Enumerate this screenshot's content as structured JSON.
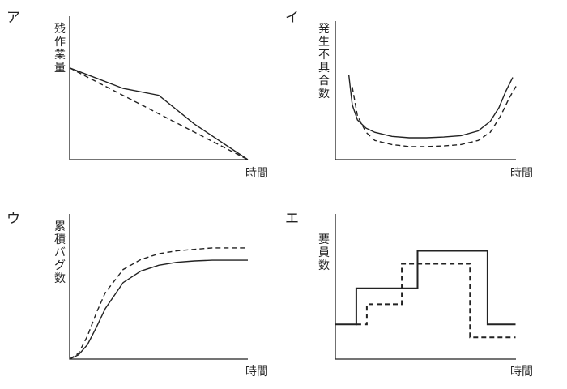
{
  "chart_data": [
    {
      "type": "line",
      "panel": "ア",
      "ylabel": "残作業量",
      "xlabel": "時間",
      "xlim": [
        0,
        10
      ],
      "ylim": [
        0,
        10
      ],
      "series": [
        {
          "style": "solid",
          "x": [
            0,
            3,
            5,
            7,
            10
          ],
          "y": [
            6.7,
            5.2,
            4.7,
            2.6,
            0
          ]
        },
        {
          "style": "dashed",
          "x": [
            0,
            10
          ],
          "y": [
            6.7,
            0
          ]
        }
      ]
    },
    {
      "type": "line",
      "panel": "イ",
      "ylabel": "発生不具合数",
      "xlabel": "時間",
      "xlim": [
        0,
        10
      ],
      "ylim": [
        0,
        10
      ],
      "series": [
        {
          "style": "solid",
          "x": [
            0.5,
            0.7,
            1,
            1.5,
            2,
            3,
            4,
            5,
            6,
            7,
            8,
            8.7,
            9.2,
            9.6,
            10
          ],
          "y": [
            6.2,
            4,
            2.9,
            2.3,
            2.0,
            1.7,
            1.6,
            1.6,
            1.65,
            1.75,
            2.1,
            2.8,
            3.8,
            5.0,
            6.0
          ]
        },
        {
          "style": "dashed",
          "x": [
            0.7,
            1,
            1.5,
            2,
            3,
            4,
            5,
            6,
            7,
            8,
            8.7,
            9.3,
            9.8,
            10.3
          ],
          "y": [
            5.3,
            3.2,
            2.0,
            1.4,
            1.1,
            0.95,
            0.95,
            1.0,
            1.1,
            1.4,
            2.0,
            3.2,
            4.5,
            5.6
          ]
        }
      ]
    },
    {
      "type": "line",
      "panel": "ウ",
      "ylabel": "累積バグ数",
      "xlabel": "時間",
      "xlim": [
        0,
        10
      ],
      "ylim": [
        0,
        10
      ],
      "series": [
        {
          "style": "solid",
          "x": [
            0,
            0.5,
            1,
            1.5,
            2,
            3,
            4,
            5,
            6,
            7,
            8,
            9,
            10
          ],
          "y": [
            0,
            0.3,
            1.0,
            2.2,
            3.5,
            5.3,
            6.1,
            6.5,
            6.7,
            6.8,
            6.85,
            6.85,
            6.85
          ]
        },
        {
          "style": "dashed",
          "x": [
            0,
            0.5,
            1,
            1.5,
            2,
            3,
            4,
            5,
            6,
            7,
            8,
            9,
            10
          ],
          "y": [
            0,
            0.4,
            1.6,
            3.2,
            4.6,
            6.2,
            6.9,
            7.3,
            7.5,
            7.6,
            7.7,
            7.7,
            7.7
          ]
        }
      ]
    },
    {
      "type": "line",
      "panel": "エ",
      "ylabel": "要員数",
      "xlabel": "時間",
      "xlim": [
        0,
        10
      ],
      "ylim": [
        0,
        10
      ],
      "series": [
        {
          "style": "solid",
          "step": true,
          "x": [
            0,
            1.2,
            1.2,
            4.7,
            4.7,
            8.7,
            8.7,
            10.3
          ],
          "y": [
            2.4,
            2.4,
            4.9,
            4.9,
            7.5,
            7.5,
            2.4,
            2.4
          ]
        },
        {
          "style": "dashed",
          "step": true,
          "x": [
            1.2,
            1.8,
            1.8,
            3.8,
            3.8,
            7.7,
            7.7,
            10.3
          ],
          "y": [
            2.4,
            2.4,
            3.8,
            3.8,
            6.6,
            6.6,
            1.5,
            1.5
          ]
        }
      ]
    }
  ]
}
